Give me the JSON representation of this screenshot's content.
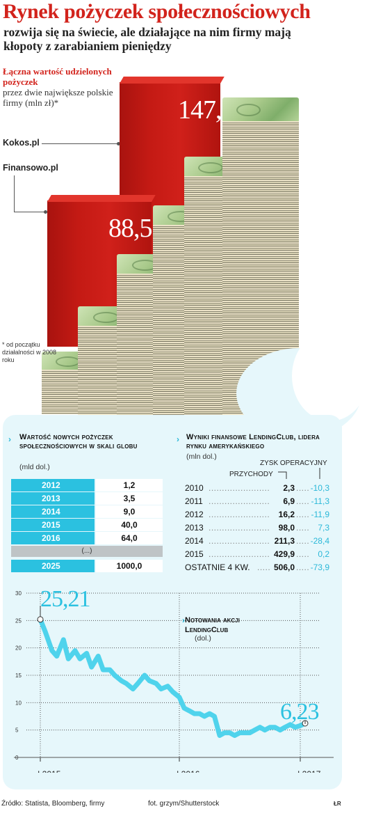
{
  "title": "Rynek pożyczek społecznościowych",
  "subtitle": "rozwija się na świecie, ale działające na nim firmy mają kłopoty z zarabianiem pieniędzy",
  "top": {
    "label_red": "Łączna wartość udzielonych pożyczek",
    "label_rest": "przez dwie największe polskie firmy (mln zł)*",
    "companies": [
      "Kokos.pl",
      "Finansowo.pl"
    ],
    "values": [
      "147,0",
      "88,5"
    ],
    "footnote": "* od początku działalności w 2008 roku"
  },
  "global": {
    "title": "Wartość nowych pożyczek społecznościowych w skali globu",
    "unit": "(mld dol.)",
    "rows": [
      {
        "year": "2012",
        "value": "1,2"
      },
      {
        "year": "2013",
        "value": "3,5"
      },
      {
        "year": "2014",
        "value": "9,0"
      },
      {
        "year": "2015",
        "value": "40,0"
      },
      {
        "year": "2016",
        "value": "64,0"
      }
    ],
    "gap": "(...)",
    "last": {
      "year": "2025",
      "value": "1000,0"
    }
  },
  "lending": {
    "title": "Wyniki finansowe LendingClub, lidera rynku amerykańskiego",
    "unit": "(mln dol.)",
    "col_op": "ZYSK OPERACYJNY",
    "col_rev": "PRZYCHODY",
    "rows": [
      {
        "year": "2010",
        "rev": "2,3",
        "op": "-10,3"
      },
      {
        "year": "2011",
        "rev": "6,9",
        "op": "-11,3"
      },
      {
        "year": "2012",
        "rev": "16,2",
        "op": "-11,9"
      },
      {
        "year": "2013",
        "rev": "98,0",
        "op": "7,3"
      },
      {
        "year": "2014",
        "rev": "211,3",
        "op": "-28,4"
      },
      {
        "year": "2015",
        "rev": "429,9",
        "op": "0,2"
      },
      {
        "year": "OSTATNIE 4 KW.",
        "rev": "506,0",
        "op": "-73,9"
      }
    ]
  },
  "chart_data": {
    "type": "line",
    "title": "Notowania akcji LendingClub",
    "unit": "(dol.)",
    "ylim": [
      0,
      30
    ],
    "yticks": [
      "0",
      "5",
      "10",
      "15",
      "20",
      "25",
      "30"
    ],
    "xticks": [
      "I 2015",
      "I 2016",
      "I 2017"
    ],
    "start_label": "25,21",
    "end_label": "6,23",
    "series": [
      {
        "color": "#4fd3ec",
        "x": [
          "2015-01",
          "2015-01",
          "2015-02",
          "2015-02",
          "2015-03",
          "2015-03",
          "2015-04",
          "2015-04",
          "2015-05",
          "2015-05",
          "2015-06",
          "2015-06",
          "2015-07",
          "2015-07",
          "2015-08",
          "2015-08",
          "2015-09",
          "2015-09",
          "2015-10",
          "2015-10",
          "2015-11",
          "2015-11",
          "2015-12",
          "2015-12",
          "2016-01",
          "2016-01",
          "2016-02",
          "2016-02",
          "2016-03",
          "2016-03",
          "2016-04",
          "2016-04",
          "2016-05",
          "2016-05",
          "2016-06",
          "2016-06",
          "2016-07",
          "2016-07",
          "2016-08",
          "2016-08",
          "2016-09",
          "2016-09",
          "2016-10",
          "2016-10",
          "2016-11",
          "2016-11",
          "2016-12",
          "2016-12",
          "2017-01",
          "2017-01"
        ],
        "values": [
          25.2,
          23.0,
          19.5,
          18.5,
          21.5,
          18.0,
          19.5,
          18.0,
          19.0,
          16.5,
          18.5,
          16.0,
          16.0,
          15.0,
          14.0,
          13.5,
          12.5,
          13.5,
          15.0,
          14.0,
          13.5,
          12.5,
          13.0,
          12.0,
          11.0,
          9.0,
          8.5,
          8.0,
          8.0,
          7.5,
          8.0,
          7.5,
          4.0,
          4.5,
          4.5,
          4.0,
          4.5,
          4.5,
          4.5,
          5.0,
          5.5,
          5.0,
          5.5,
          5.5,
          5.0,
          5.5,
          6.0,
          5.5,
          5.8,
          6.23
        ]
      }
    ]
  },
  "footer": {
    "source": "Źródło: Statista, Bloomberg, firmy",
    "photo": "fot. grzym/Shutterstock",
    "initials": "ŁR"
  }
}
